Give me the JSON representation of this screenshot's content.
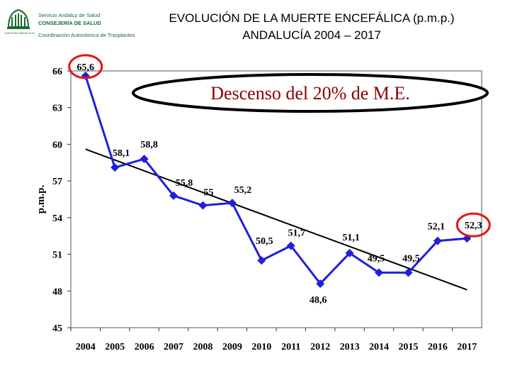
{
  "header": {
    "logo": {
      "line1": "Servicio Andaluz de Salud",
      "line2": "CONSEJERÍA DE SALUD",
      "line3": "Coordinación Autonómica de Trasplantes",
      "caption": "JUNTA DE ANDALUCIA"
    },
    "title_line1": "EVOLUCIÓN DE LA MUERTE ENCEFÁLICA (p.m.p.)",
    "title_line2": "ANDALUCÍA 2004 – 2017"
  },
  "colors": {
    "series": "#1f1fdc",
    "trend": "#000000",
    "highlight": "#e01818",
    "callout_text": "#8b0000",
    "logo": "#1a6b2e"
  },
  "chart_data": {
    "type": "line",
    "title": "EVOLUCIÓN DE LA MUERTE ENCEFÁLICA (p.m.p.) ANDALUCÍA 2004 – 2017",
    "xlabel": "",
    "ylabel": "p.m.p.",
    "ylim": [
      45,
      66
    ],
    "yticks": [
      45,
      48,
      51,
      54,
      57,
      60,
      63,
      66
    ],
    "grid": false,
    "x": [
      "2004",
      "2005",
      "2006",
      "2007",
      "2008",
      "2009",
      "2010",
      "2011",
      "2012",
      "2013",
      "2014",
      "2015",
      "2016",
      "2017"
    ],
    "series": [
      {
        "values": [
          65.6,
          58.1,
          58.8,
          55.8,
          55,
          55.2,
          50.5,
          51.7,
          48.6,
          51.1,
          49.5,
          49.5,
          52.1,
          52.3
        ],
        "labels": [
          "65,6",
          "58,1",
          "58,8",
          "55,8",
          "55",
          "55,2",
          "50,5",
          "51,7",
          "48,6",
          "51,1",
          "49,5",
          "49,5",
          "52,1",
          "52,3"
        ],
        "marker": "diamond"
      }
    ],
    "trendline": {
      "start": [
        "2004",
        59.6
      ],
      "end": [
        "2017",
        48.1
      ]
    },
    "highlighted_points": [
      "2004",
      "2017"
    ],
    "annotation": "Descenso del 20% de M.E."
  }
}
